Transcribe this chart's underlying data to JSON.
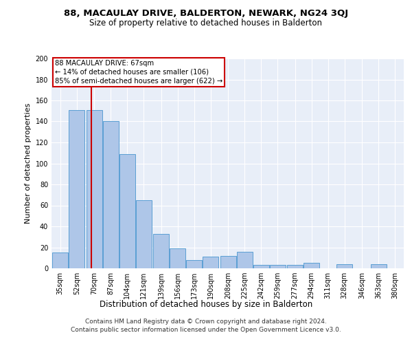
{
  "title1": "88, MACAULAY DRIVE, BALDERTON, NEWARK, NG24 3QJ",
  "title2": "Size of property relative to detached houses in Balderton",
  "xlabel": "Distribution of detached houses by size in Balderton",
  "ylabel": "Number of detached properties",
  "footer1": "Contains HM Land Registry data © Crown copyright and database right 2024.",
  "footer2": "Contains public sector information licensed under the Open Government Licence v3.0.",
  "bar_labels": [
    "35sqm",
    "52sqm",
    "70sqm",
    "87sqm",
    "104sqm",
    "121sqm",
    "139sqm",
    "156sqm",
    "173sqm",
    "190sqm",
    "208sqm",
    "225sqm",
    "242sqm",
    "259sqm",
    "277sqm",
    "294sqm",
    "311sqm",
    "328sqm",
    "346sqm",
    "363sqm",
    "380sqm"
  ],
  "bar_values": [
    15,
    151,
    151,
    140,
    109,
    65,
    33,
    19,
    8,
    11,
    12,
    16,
    3,
    3,
    3,
    5,
    0,
    4,
    0,
    4,
    0
  ],
  "bar_color": "#aec6e8",
  "bar_edge_color": "#5a9fd4",
  "annotation_text": "88 MACAULAY DRIVE: 67sqm\n← 14% of detached houses are smaller (106)\n85% of semi-detached houses are larger (622) →",
  "vline_color": "#cc0000",
  "annotation_box_color": "#cc0000",
  "ylim": [
    0,
    200
  ],
  "yticks": [
    0,
    20,
    40,
    60,
    80,
    100,
    120,
    140,
    160,
    180,
    200
  ],
  "bg_color": "#e8eef8",
  "title1_fontsize": 9.5,
  "title2_fontsize": 8.5,
  "ylabel_fontsize": 8,
  "xlabel_fontsize": 8.5,
  "footer_fontsize": 6.5,
  "tick_fontsize": 7
}
